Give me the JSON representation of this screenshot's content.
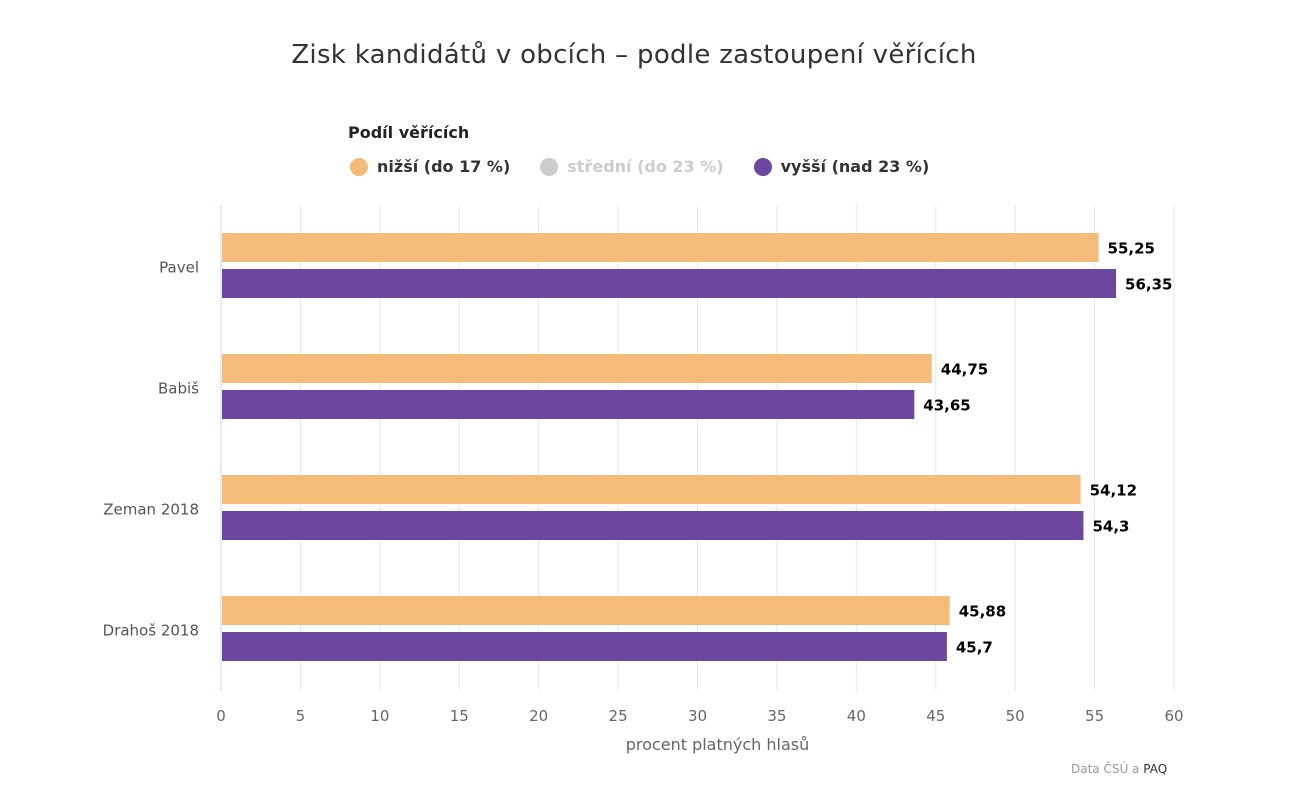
{
  "title": "Zisk kandidátů v obcích – podle zastoupení věřících",
  "legend": {
    "title": "Podíl věřících",
    "items": [
      {
        "label": "nižší (do 17 %)",
        "color": "#f5bb78",
        "visible": true
      },
      {
        "label": "střední (do 23 %)",
        "color": "#cccccc",
        "visible": false
      },
      {
        "label": "vyšší (nad 23 %)",
        "color": "#6b47a0",
        "visible": true
      }
    ]
  },
  "credit": {
    "prefix": "Data ČSÚ a ",
    "link": "PAQ"
  },
  "chart_data": {
    "type": "bar",
    "orientation": "horizontal",
    "categories": [
      "Pavel",
      "Babiš",
      "Zeman 2018",
      "Drahoš 2018"
    ],
    "series": [
      {
        "name": "nižší (do 17 %)",
        "color": "#f5bb78",
        "values": [
          55.25,
          44.75,
          54.12,
          45.88
        ],
        "labels": [
          "55,25",
          "44,75",
          "54,12",
          "45,88"
        ]
      },
      {
        "name": "vyšší (nad 23 %)",
        "color": "#6b47a0",
        "values": [
          56.35,
          43.65,
          54.3,
          45.7
        ],
        "labels": [
          "56,35",
          "43,65",
          "54,3",
          "45,7"
        ]
      }
    ],
    "xlabel": "procent platných hlasů",
    "xlim": [
      0,
      60
    ],
    "xticks": [
      "0",
      "5",
      "10",
      "15",
      "20",
      "25",
      "30",
      "35",
      "40",
      "45",
      "50",
      "55",
      "60"
    ],
    "grid": true
  }
}
